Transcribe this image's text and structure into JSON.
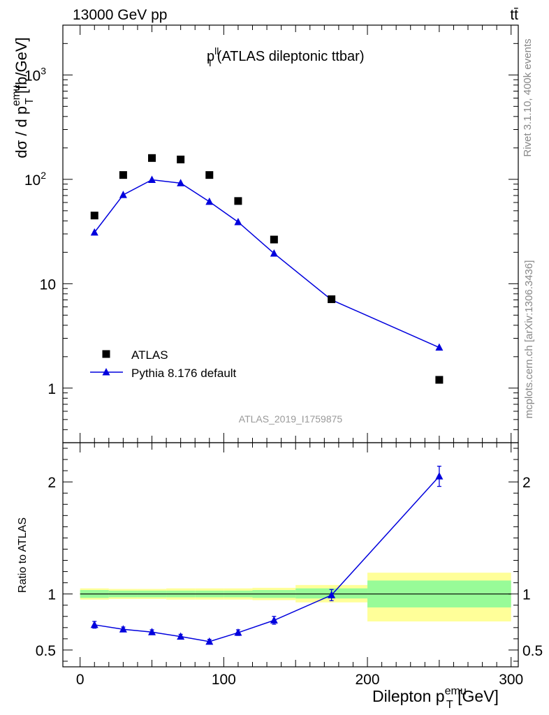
{
  "header": {
    "left": "13000 GeV pp",
    "right": "tt̄"
  },
  "side_labels": {
    "rivet": "Rivet 3.1.10,  400k events",
    "mcplots": "mcplots.cern.ch [arXiv:1306.3436]"
  },
  "chart_data": [
    {
      "type": "scatter",
      "title": {
        "main": "p",
        "sup": "ll",
        "sub": "T",
        "rest": " (ATLAS dileptonic ttbar)"
      },
      "ylabel": {
        "main": "dσ / d p",
        "sup": "emu",
        "sub": "T",
        "rest": " [fb/GeV]"
      },
      "yscale": "log",
      "ylim": [
        0.3,
        3000
      ],
      "xlim": [
        -12,
        305
      ],
      "ytick_labels": [
        {
          "value": 1,
          "label": "1"
        },
        {
          "value": 10,
          "label": "10"
        },
        {
          "value": 100,
          "label": "10",
          "sup": "2"
        },
        {
          "value": 1000,
          "label": "10",
          "sup": "3"
        }
      ],
      "watermark": "ATLAS_2019_I1759875",
      "legend_placement": "bottom-left",
      "series": [
        {
          "name": "ATLAS",
          "marker": "square",
          "color": "#000000",
          "x": [
            10,
            30,
            50,
            70,
            90,
            110,
            135,
            175,
            250
          ],
          "y": [
            45,
            110,
            160,
            155,
            110,
            62,
            26.5,
            7.1,
            1.2
          ]
        },
        {
          "name": "Pythia 8.176 default",
          "marker": "triangle",
          "line": true,
          "color": "#0000dd",
          "x": [
            10,
            30,
            50,
            70,
            90,
            110,
            135,
            175,
            250
          ],
          "y": [
            31,
            71,
            99,
            92,
            61,
            39,
            19.5,
            7.0,
            2.45
          ]
        }
      ]
    },
    {
      "type": "line",
      "ylabel": "Ratio to ATLAS",
      "ylim": [
        0.35,
        2.35
      ],
      "xlim": [
        -12,
        305
      ],
      "xlabel": {
        "main": "Dilepton p",
        "sup": "emu",
        "sub": "T",
        "rest": " [GeV]"
      },
      "xticks": [
        0,
        100,
        200,
        300
      ],
      "yticks": [
        0.5,
        1,
        2
      ],
      "reference_line": 1,
      "uncertainty_bands": [
        {
          "x0": 0,
          "x1": 20,
          "inner": [
            0.965,
            1.035
          ],
          "outer": [
            0.95,
            1.05
          ]
        },
        {
          "x0": 20,
          "x1": 40,
          "inner": [
            0.97,
            1.03
          ],
          "outer": [
            0.955,
            1.045
          ]
        },
        {
          "x0": 40,
          "x1": 60,
          "inner": [
            0.97,
            1.03
          ],
          "outer": [
            0.955,
            1.045
          ]
        },
        {
          "x0": 60,
          "x1": 80,
          "inner": [
            0.97,
            1.03
          ],
          "outer": [
            0.95,
            1.05
          ]
        },
        {
          "x0": 80,
          "x1": 100,
          "inner": [
            0.97,
            1.03
          ],
          "outer": [
            0.95,
            1.05
          ]
        },
        {
          "x0": 100,
          "x1": 120,
          "inner": [
            0.97,
            1.03
          ],
          "outer": [
            0.95,
            1.05
          ]
        },
        {
          "x0": 120,
          "x1": 150,
          "inner": [
            0.965,
            1.035
          ],
          "outer": [
            0.945,
            1.055
          ]
        },
        {
          "x0": 150,
          "x1": 200,
          "inner": [
            0.96,
            1.05
          ],
          "outer": [
            0.925,
            1.08
          ]
        },
        {
          "x0": 200,
          "x1": 300,
          "inner": [
            0.88,
            1.12
          ],
          "outer": [
            0.755,
            1.19
          ]
        }
      ],
      "band_colors": {
        "inner": "#98fb98",
        "outer": "#ffff99"
      },
      "series": [
        {
          "name": "Pythia 8.176 default",
          "color": "#0000dd",
          "x": [
            10,
            30,
            50,
            70,
            90,
            110,
            135,
            175,
            250
          ],
          "y": [
            0.725,
            0.685,
            0.66,
            0.62,
            0.575,
            0.655,
            0.765,
            0.99,
            2.05
          ],
          "yerr": [
            0.03,
            0.02,
            0.02,
            0.02,
            0.02,
            0.025,
            0.035,
            0.05,
            0.09
          ]
        }
      ]
    }
  ]
}
